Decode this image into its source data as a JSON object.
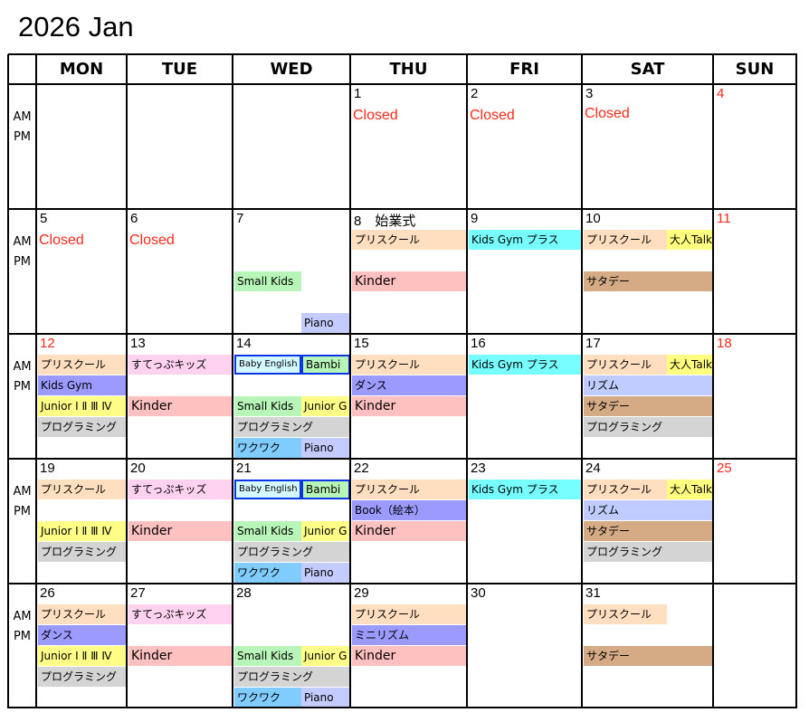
{
  "title": "2026 Jan",
  "headers": [
    "MON",
    "TUE",
    "WED",
    "THU",
    "FRI",
    "SAT",
    "SUN"
  ],
  "ampm": [
    "AM",
    "PM"
  ],
  "colors": {
    "preschool": "#ffdfbf",
    "steppu": "#ffd2f0",
    "baby_english": "#d4f8ff",
    "bambi": "#b8f5b8",
    "kids_gym": "#9a9aff",
    "junior": "#ffff88",
    "kinder": "#ffc0c0",
    "small_kids": "#b8f5b8",
    "programming": "#d4d4d4",
    "wakuwaku": "#80ccff",
    "piano": "#c4ccff",
    "kids_gym_plus": "#77ffff",
    "otona_talk": "#ffff80",
    "saturday": "#d4ab84",
    "rhythm": "#c0ccff",
    "dance": "#9a9aff",
    "book": "#9a9aff",
    "mini_rhythm": "#9a9aff",
    "holiday_text": "#ff2a1a",
    "highlight_border": "#0a36e8"
  },
  "weeks": [
    [
      {
        "num": ""
      },
      {
        "num": ""
      },
      {
        "num": ""
      },
      {
        "num": "1",
        "label": "Closed"
      },
      {
        "num": "2",
        "label": "Closed"
      },
      {
        "num": "3",
        "label": "Closed"
      },
      {
        "num": "4",
        "red": true
      }
    ],
    [
      {
        "num": "5",
        "label": "Closed"
      },
      {
        "num": "6",
        "label": "Closed"
      },
      {
        "num": "7",
        "events": [
          {
            "text": "Small Kids",
            "c": "small_kids",
            "slot": 3,
            "part": "left"
          },
          {
            "text": "Piano",
            "c": "piano",
            "slot": 5,
            "part": "right"
          }
        ]
      },
      {
        "num": "8　始業式",
        "events": [
          {
            "text": "プリスクール",
            "c": "preschool",
            "slot": 1
          },
          {
            "text": "Kinder",
            "c": "kinder",
            "slot": 3,
            "big": true
          }
        ]
      },
      {
        "num": "9",
        "events": [
          {
            "text": "Kids Gym プラス",
            "c": "kids_gym_plus",
            "slot": 1
          }
        ]
      },
      {
        "num": "10",
        "events": [
          {
            "text": "プリスクール",
            "c": "preschool",
            "slot": 1,
            "part": "left"
          },
          {
            "text": "大人Talk",
            "c": "otona_talk",
            "slot": 1,
            "part": "right"
          },
          {
            "text": "サタデー",
            "c": "saturday",
            "slot": 3
          }
        ]
      },
      {
        "num": "11",
        "red": true
      }
    ],
    [
      {
        "num": "12",
        "red": true,
        "events": [
          {
            "text": "プリスクール",
            "c": "preschool",
            "slot": 1
          },
          {
            "text": "Kids Gym",
            "c": "kids_gym",
            "slot": 2
          },
          {
            "text": "Junior Ⅰ Ⅱ Ⅲ Ⅳ",
            "c": "junior",
            "slot": 3
          },
          {
            "text": "プログラミング",
            "c": "programming",
            "slot": 4
          }
        ]
      },
      {
        "num": "13",
        "events": [
          {
            "text": "すてっぷキッズ",
            "c": "steppu",
            "slot": 1
          },
          {
            "text": "Kinder",
            "c": "kinder",
            "slot": 3,
            "big": true
          }
        ]
      },
      {
        "num": "14",
        "events": [
          {
            "text": "Baby English",
            "c": "baby_english",
            "slot": 1,
            "part": "left",
            "boxed": true,
            "small": true
          },
          {
            "text": "Bambi",
            "c": "bambi",
            "slot": 1,
            "part": "right",
            "boxed": true
          },
          {
            "text": "Small Kids",
            "c": "small_kids",
            "slot": 3,
            "part": "left"
          },
          {
            "text": "Junior G",
            "c": "junior",
            "slot": 3,
            "part": "right"
          },
          {
            "text": "プログラミング",
            "c": "programming",
            "slot": 4
          },
          {
            "text": "ワクワク",
            "c": "wakuwaku",
            "slot": 5,
            "part": "left"
          },
          {
            "text": "Piano",
            "c": "piano",
            "slot": 5,
            "part": "right"
          }
        ]
      },
      {
        "num": "15",
        "events": [
          {
            "text": "プリスクール",
            "c": "preschool",
            "slot": 1
          },
          {
            "text": "ダンス",
            "c": "dance",
            "slot": 2
          },
          {
            "text": "Kinder",
            "c": "kinder",
            "slot": 3,
            "big": true
          }
        ]
      },
      {
        "num": "16",
        "events": [
          {
            "text": "Kids Gym プラス",
            "c": "kids_gym_plus",
            "slot": 1
          }
        ]
      },
      {
        "num": "17",
        "events": [
          {
            "text": "プリスクール",
            "c": "preschool",
            "slot": 1,
            "part": "left"
          },
          {
            "text": "大人Talk",
            "c": "otona_talk",
            "slot": 1,
            "part": "right"
          },
          {
            "text": "リズム",
            "c": "rhythm",
            "slot": 2
          },
          {
            "text": "サタデー",
            "c": "saturday",
            "slot": 3
          },
          {
            "text": "プログラミング",
            "c": "programming",
            "slot": 4
          }
        ]
      },
      {
        "num": "18",
        "red": true
      }
    ],
    [
      {
        "num": "19",
        "events": [
          {
            "text": "プリスクール",
            "c": "preschool",
            "slot": 1
          },
          {
            "text": "Junior Ⅰ Ⅱ Ⅲ Ⅳ",
            "c": "junior",
            "slot": 3
          },
          {
            "text": "プログラミング",
            "c": "programming",
            "slot": 4
          }
        ]
      },
      {
        "num": "20",
        "events": [
          {
            "text": "すてっぷキッズ",
            "c": "steppu",
            "slot": 1
          },
          {
            "text": "Kinder",
            "c": "kinder",
            "slot": 3,
            "big": true
          }
        ]
      },
      {
        "num": "21",
        "events": [
          {
            "text": "Baby English",
            "c": "baby_english",
            "slot": 1,
            "part": "left",
            "boxed": true,
            "small": true
          },
          {
            "text": "Bambi",
            "c": "bambi",
            "slot": 1,
            "part": "right",
            "boxed": true
          },
          {
            "text": "Small Kids",
            "c": "small_kids",
            "slot": 3,
            "part": "left"
          },
          {
            "text": "Junior G",
            "c": "junior",
            "slot": 3,
            "part": "right"
          },
          {
            "text": "プログラミング",
            "c": "programming",
            "slot": 4
          },
          {
            "text": "ワクワク",
            "c": "wakuwaku",
            "slot": 5,
            "part": "left"
          },
          {
            "text": "Piano",
            "c": "piano",
            "slot": 5,
            "part": "right"
          }
        ]
      },
      {
        "num": "22",
        "events": [
          {
            "text": "プリスクール",
            "c": "preschool",
            "slot": 1
          },
          {
            "text": "Book（絵本）",
            "c": "book",
            "slot": 2
          },
          {
            "text": "Kinder",
            "c": "kinder",
            "slot": 3,
            "big": true
          }
        ]
      },
      {
        "num": "23",
        "events": [
          {
            "text": "Kids Gym プラス",
            "c": "kids_gym_plus",
            "slot": 1
          }
        ]
      },
      {
        "num": "24",
        "events": [
          {
            "text": "プリスクール",
            "c": "preschool",
            "slot": 1,
            "part": "left"
          },
          {
            "text": "大人Talk",
            "c": "otona_talk",
            "slot": 1,
            "part": "right"
          },
          {
            "text": "リズム",
            "c": "rhythm",
            "slot": 2
          },
          {
            "text": "サタデー",
            "c": "saturday",
            "slot": 3
          },
          {
            "text": "プログラミング",
            "c": "programming",
            "slot": 4
          }
        ]
      },
      {
        "num": "25",
        "red": true
      }
    ],
    [
      {
        "num": "26",
        "events": [
          {
            "text": "プリスクール",
            "c": "preschool",
            "slot": 1
          },
          {
            "text": "ダンス",
            "c": "dance",
            "slot": 2
          },
          {
            "text": "Junior Ⅰ Ⅱ Ⅲ Ⅳ",
            "c": "junior",
            "slot": 3
          },
          {
            "text": "プログラミング",
            "c": "programming",
            "slot": 4
          }
        ]
      },
      {
        "num": "27",
        "events": [
          {
            "text": "すてっぷキッズ",
            "c": "steppu",
            "slot": 1
          },
          {
            "text": "Kinder",
            "c": "kinder",
            "slot": 3,
            "big": true
          }
        ]
      },
      {
        "num": "28",
        "events": [
          {
            "text": "Small Kids",
            "c": "small_kids",
            "slot": 3,
            "part": "left"
          },
          {
            "text": "Junior G",
            "c": "junior",
            "slot": 3,
            "part": "right"
          },
          {
            "text": "プログラミング",
            "c": "programming",
            "slot": 4
          },
          {
            "text": "ワクワク",
            "c": "wakuwaku",
            "slot": 5,
            "part": "left"
          },
          {
            "text": "Piano",
            "c": "piano",
            "slot": 5,
            "part": "right"
          }
        ]
      },
      {
        "num": "29",
        "events": [
          {
            "text": "プリスクール",
            "c": "preschool",
            "slot": 1
          },
          {
            "text": "ミニリズム",
            "c": "mini_rhythm",
            "slot": 2
          },
          {
            "text": "Kinder",
            "c": "kinder",
            "slot": 3,
            "big": true
          }
        ]
      },
      {
        "num": "30"
      },
      {
        "num": "31",
        "events": [
          {
            "text": "プリスクール",
            "c": "preschool",
            "slot": 1,
            "part": "left"
          },
          {
            "text": "サタデー",
            "c": "saturday",
            "slot": 3
          }
        ]
      },
      {
        "num": ""
      }
    ]
  ]
}
